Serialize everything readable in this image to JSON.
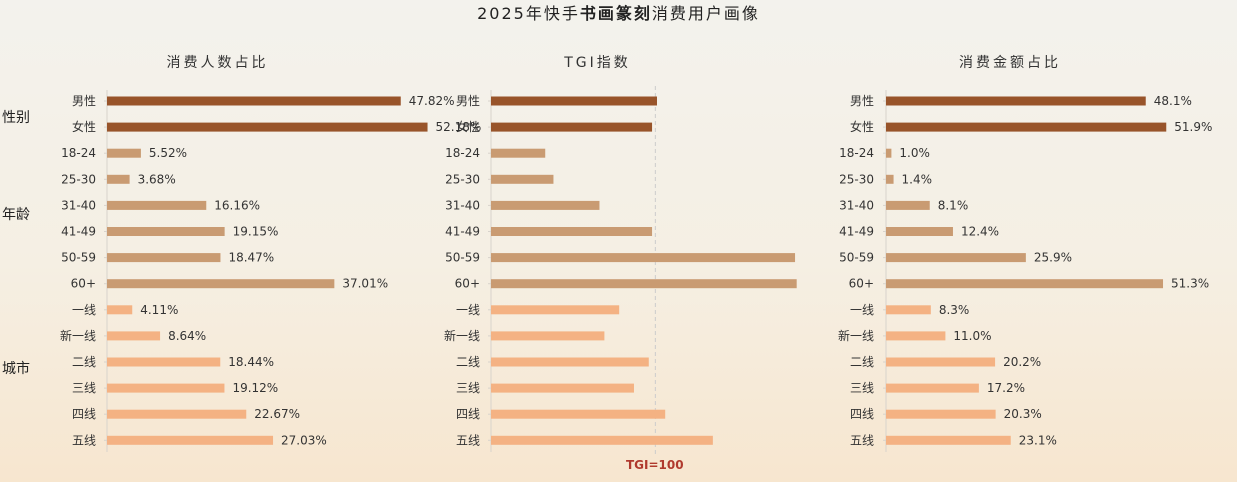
{
  "title_parts": {
    "prefix": "2025年快手",
    "bold": "书画篆刻",
    "suffix": "消费用户画像"
  },
  "group_labels": {
    "gender": "性别",
    "age": "年龄",
    "city": "城市"
  },
  "colors": {
    "gender": "#98542a",
    "age": "#c99b72",
    "city": "#f4b283",
    "refline": "#cccccc",
    "tgi_note": "#b03a2e"
  },
  "tgi_reference_label": "TGI=100",
  "chart_data": [
    {
      "type": "bar",
      "orientation": "horizontal",
      "title": "消费人数占比",
      "categories": [
        "男性",
        "女性",
        "18-24",
        "25-30",
        "31-40",
        "41-49",
        "50-59",
        "60+",
        "一线",
        "新一线",
        "二线",
        "三线",
        "四线",
        "五线"
      ],
      "groups": [
        "gender",
        "gender",
        "age",
        "age",
        "age",
        "age",
        "age",
        "age",
        "city",
        "city",
        "city",
        "city",
        "city",
        "city"
      ],
      "values": [
        47.82,
        52.18,
        5.52,
        3.68,
        16.16,
        19.15,
        18.47,
        37.01,
        4.11,
        8.64,
        18.44,
        19.12,
        22.67,
        27.03
      ],
      "labels": [
        "47.82%",
        "52.18%",
        "5.52%",
        "3.68%",
        "16.16%",
        "19.15%",
        "18.47%",
        "37.01%",
        "4.11%",
        "8.64%",
        "18.44%",
        "19.12%",
        "22.67%",
        "27.03%"
      ],
      "xlim": [
        0,
        70
      ]
    },
    {
      "type": "bar",
      "orientation": "horizontal",
      "title": "TGI指数",
      "categories": [
        "男性",
        "女性",
        "18-24",
        "25-30",
        "31-40",
        "41-49",
        "50-59",
        "60+",
        "一线",
        "新一线",
        "二线",
        "三线",
        "四线",
        "五线"
      ],
      "groups": [
        "gender",
        "gender",
        "age",
        "age",
        "age",
        "age",
        "age",
        "age",
        "city",
        "city",
        "city",
        "city",
        "city",
        "city"
      ],
      "values": [
        101,
        98,
        33,
        38,
        66,
        98,
        185,
        186,
        78,
        69,
        96,
        87,
        106,
        135
      ],
      "reference_line": 100,
      "xlim": [
        0,
        230
      ]
    },
    {
      "type": "bar",
      "orientation": "horizontal",
      "title": "消费金额占比",
      "categories": [
        "男性",
        "女性",
        "18-24",
        "25-30",
        "31-40",
        "41-49",
        "50-59",
        "60+",
        "一线",
        "新一线",
        "二线",
        "三线",
        "四线",
        "五线"
      ],
      "groups": [
        "gender",
        "gender",
        "age",
        "age",
        "age",
        "age",
        "age",
        "age",
        "city",
        "city",
        "city",
        "city",
        "city",
        "city"
      ],
      "values": [
        48.1,
        51.9,
        1.0,
        1.4,
        8.1,
        12.4,
        25.9,
        51.3,
        8.3,
        11.0,
        20.2,
        17.2,
        20.3,
        23.1
      ],
      "labels": [
        "48.1%",
        "51.9%",
        "1.0%",
        "1.4%",
        "8.1%",
        "12.4%",
        "25.9%",
        "51.3%",
        "8.3%",
        "11.0%",
        "20.2%",
        "17.2%",
        "20.3%",
        "23.1%"
      ],
      "xlim": [
        0,
        65
      ]
    }
  ]
}
